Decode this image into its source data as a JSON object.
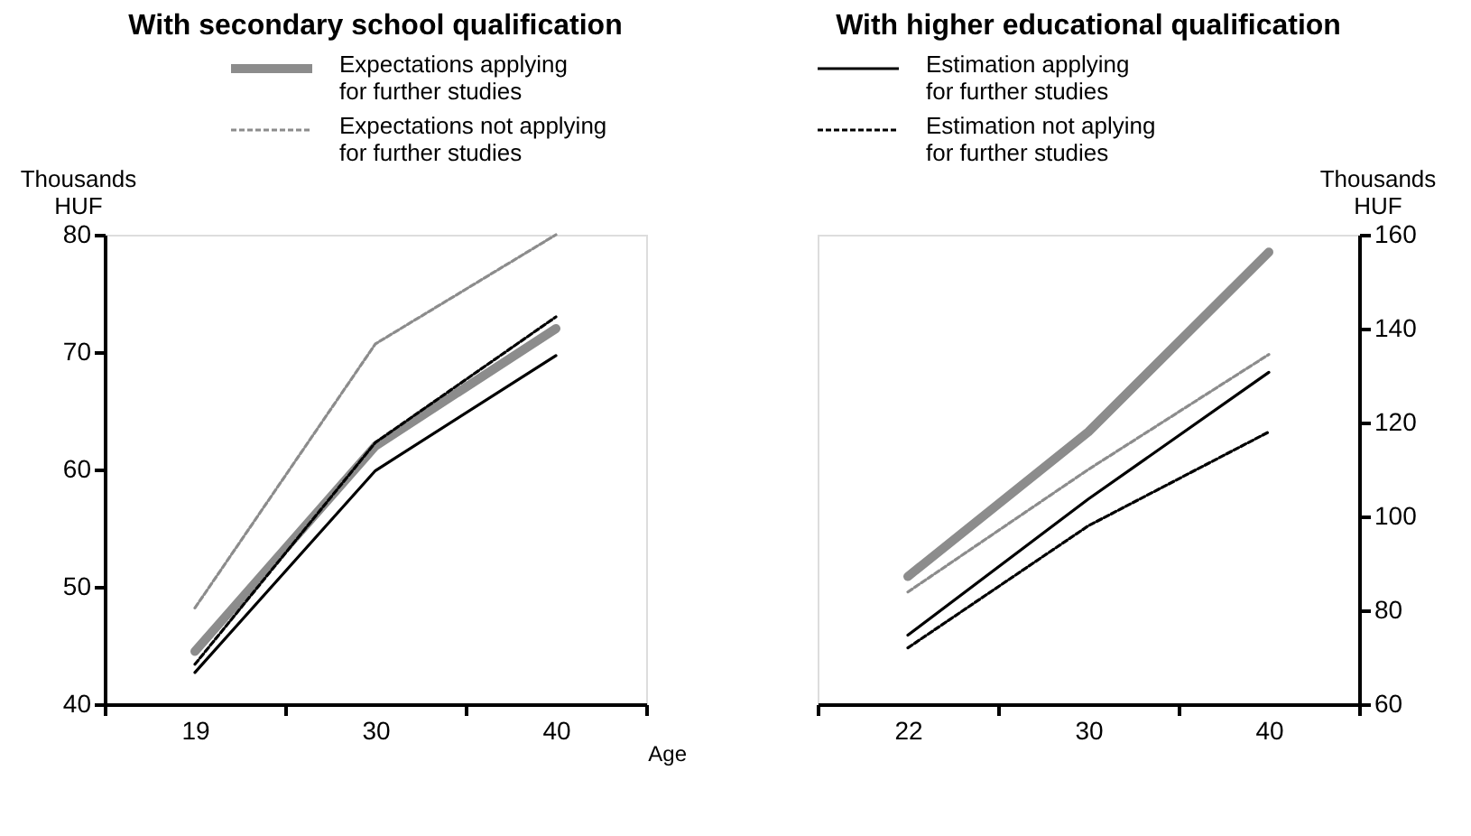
{
  "chart_data": [
    {
      "type": "line",
      "title": "With secondary school qualification",
      "xlabel": "Age",
      "ylabel": "Thousands HUF",
      "categories": [
        "19",
        "30",
        "40"
      ],
      "ylim": [
        40,
        80
      ],
      "yticks": [
        40,
        50,
        60,
        70,
        80
      ],
      "grid": false,
      "legend": "top",
      "series": [
        {
          "name": "Expectations applying for further studies",
          "color": "#8c8c8c",
          "values": [
            44.5,
            62.0,
            72.0
          ]
        },
        {
          "name": "Expectations not applying for further studies",
          "color": "#8c8c8c",
          "line_style": "dashed",
          "values": [
            48.2,
            70.7,
            80.0
          ]
        },
        {
          "color": "#000000",
          "values": [
            42.7,
            59.9,
            69.7
          ]
        },
        {
          "color": "#000000",
          "line_style": "dashed",
          "values": [
            43.4,
            62.3,
            73.0
          ]
        }
      ]
    },
    {
      "type": "line",
      "title": "With higher educational qualification",
      "y2label": "Thousands HUF",
      "categories": [
        "22",
        "30",
        "40"
      ],
      "y2lim": [
        60,
        160
      ],
      "y2ticks": [
        60,
        80,
        100,
        120,
        140,
        160
      ],
      "grid": false,
      "legend": "top left",
      "series": [
        {
          "color": "#8c8c8c",
          "axis": "y2",
          "values": [
            87.2,
            118.0,
            156.3
          ]
        },
        {
          "color": "#8c8c8c",
          "axis": "y2",
          "line_style": "dashed",
          "values": [
            83.9,
            110.0,
            134.5
          ]
        },
        {
          "name": "Estimation applying for further studies",
          "color": "#000000",
          "axis": "y2",
          "values": [
            74.7,
            103.7,
            130.7
          ]
        },
        {
          "name": "Estimation not aplying for further studies",
          "color": "#000000",
          "axis": "y2",
          "line_style": "dashed",
          "values": [
            72.0,
            98.0,
            118.0
          ]
        }
      ]
    }
  ]
}
